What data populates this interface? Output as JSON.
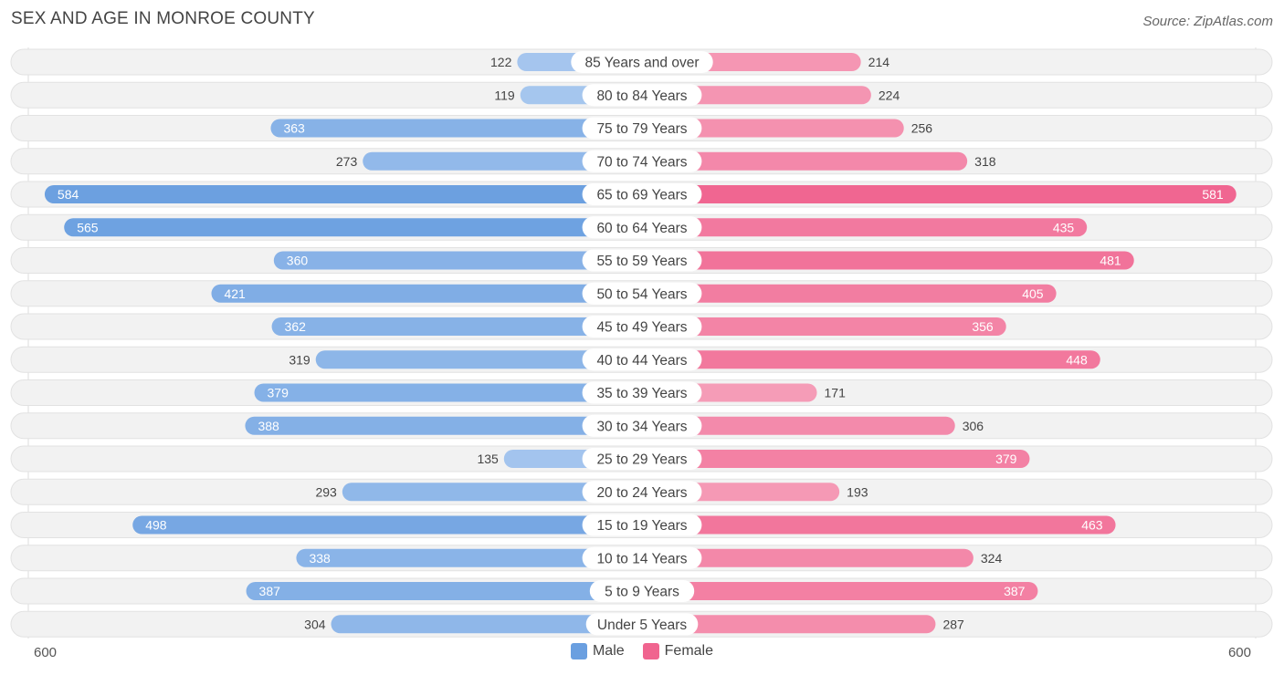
{
  "header": {
    "title": "SEX AND AGE IN MONROE COUNTY",
    "source": "Source: ZipAtlas.com"
  },
  "colors": {
    "male": "#6a9fe0",
    "male_light": "#a9c8ef",
    "female": "#f0648f",
    "female_light": "#f6a6bf"
  },
  "axis": {
    "left_label": "600",
    "right_label": "600"
  },
  "legend": {
    "male": "Male",
    "female": "Female"
  },
  "chart_data": {
    "type": "bar",
    "orientation": "horizontal-diverging",
    "title": "SEX AND AGE IN MONROE COUNTY",
    "categories": [
      "85 Years and over",
      "80 to 84 Years",
      "75 to 79 Years",
      "70 to 74 Years",
      "65 to 69 Years",
      "60 to 64 Years",
      "55 to 59 Years",
      "50 to 54 Years",
      "45 to 49 Years",
      "40 to 44 Years",
      "35 to 39 Years",
      "30 to 34 Years",
      "25 to 29 Years",
      "20 to 24 Years",
      "15 to 19 Years",
      "10 to 14 Years",
      "5 to 9 Years",
      "Under 5 Years"
    ],
    "series": [
      {
        "name": "Male",
        "values": [
          122,
          119,
          363,
          273,
          584,
          565,
          360,
          421,
          362,
          319,
          379,
          388,
          135,
          293,
          498,
          338,
          387,
          304
        ]
      },
      {
        "name": "Female",
        "values": [
          214,
          224,
          256,
          318,
          581,
          435,
          481,
          405,
          356,
          448,
          171,
          306,
          379,
          193,
          463,
          324,
          387,
          287
        ]
      }
    ],
    "xlim": [
      -600,
      600
    ],
    "legend_position": "bottom-center"
  }
}
